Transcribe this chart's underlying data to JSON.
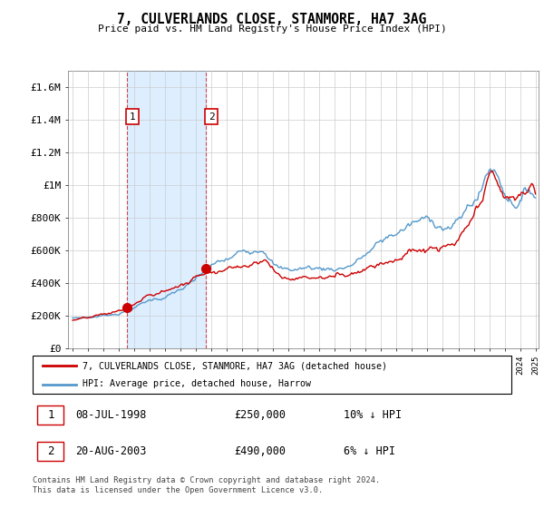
{
  "title": "7, CULVERLANDS CLOSE, STANMORE, HA7 3AG",
  "subtitle": "Price paid vs. HM Land Registry's House Price Index (HPI)",
  "legend_line1": "7, CULVERLANDS CLOSE, STANMORE, HA7 3AG (detached house)",
  "legend_line2": "HPI: Average price, detached house, Harrow",
  "sale1_date": "08-JUL-1998",
  "sale1_price": "£250,000",
  "sale1_hpi_diff": "10% ↓ HPI",
  "sale2_date": "20-AUG-2003",
  "sale2_price": "£490,000",
  "sale2_hpi_diff": "6% ↓ HPI",
  "footer": "Contains HM Land Registry data © Crown copyright and database right 2024.\nThis data is licensed under the Open Government Licence v3.0.",
  "line_color_red": "#cc0000",
  "line_color_blue": "#5599cc",
  "shade_color": "#ddeeff",
  "background_color": "#ffffff",
  "ylim": [
    0,
    1700000
  ],
  "yticks": [
    0,
    200000,
    400000,
    600000,
    800000,
    1000000,
    1200000,
    1400000,
    1600000
  ],
  "ytick_labels": [
    "£0",
    "£200K",
    "£400K",
    "£600K",
    "£800K",
    "£1M",
    "£1.2M",
    "£1.4M",
    "£1.6M"
  ],
  "sale1_x": 1998.52,
  "sale1_y": 250000,
  "sale2_x": 2003.64,
  "sale2_y": 490000,
  "marker_label_1": "1",
  "marker_label_2": "2",
  "vline1_x": 1998.52,
  "vline2_x": 2003.64,
  "xlim_start": 1995.0,
  "xlim_end": 2025.2
}
